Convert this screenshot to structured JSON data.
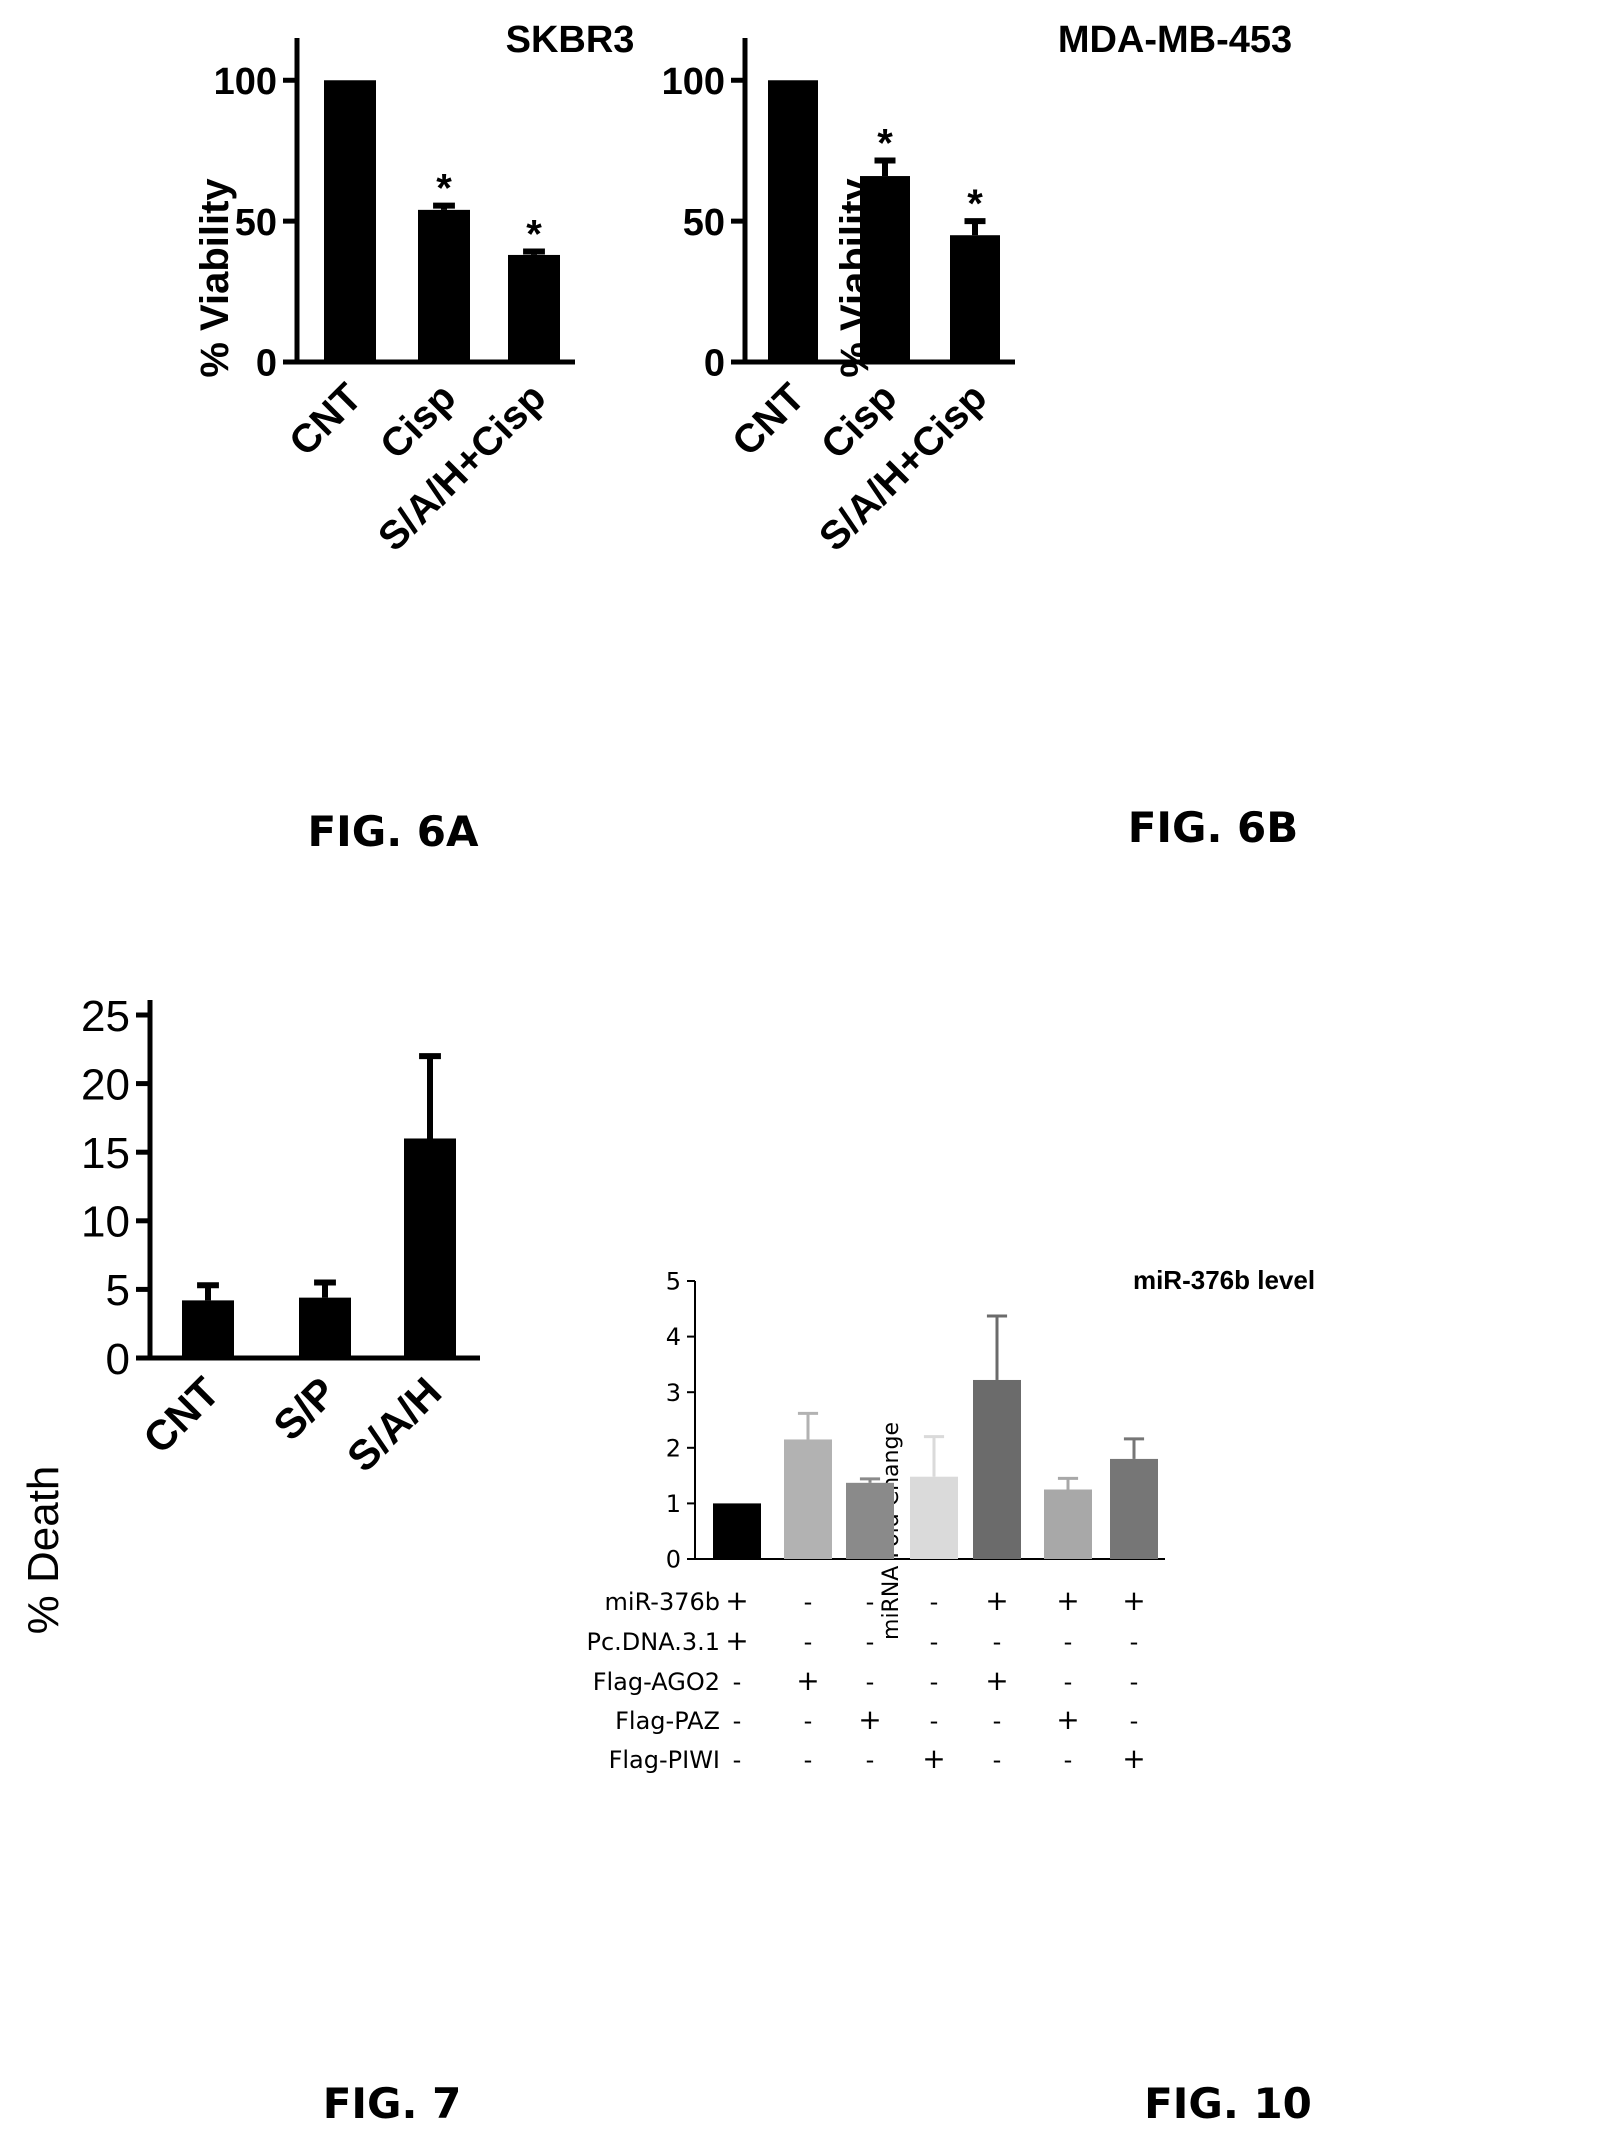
{
  "figures": {
    "fig6a": {
      "caption": "FIG. 6A"
    },
    "fig6b": {
      "caption": "FIG. 6B"
    },
    "fig7": {
      "caption": "FIG. 7"
    },
    "fig10": {
      "caption": "FIG. 10"
    }
  },
  "chart_data": [
    {
      "id": "fig6a",
      "type": "bar",
      "title": "SKBR3",
      "ylabel": "% Viability",
      "xlabel": "",
      "categories": [
        "CNT",
        "Cisp",
        "S/A/H+Cisp"
      ],
      "values": [
        100,
        54,
        38
      ],
      "errors": [
        0,
        1.5,
        1.2
      ],
      "significance": [
        "",
        "*",
        "*"
      ],
      "yticks": [
        "0",
        "50",
        "100"
      ],
      "ylim": [
        0,
        115
      ],
      "bar_color": "#000000",
      "grid": false
    },
    {
      "id": "fig6b",
      "type": "bar",
      "title": "MDA-MB-453",
      "ylabel": "% Viability",
      "xlabel": "",
      "categories": [
        "CNT",
        "Cisp",
        "S/A/H+Cisp"
      ],
      "values": [
        100,
        66,
        45
      ],
      "errors": [
        0,
        5.5,
        5
      ],
      "significance": [
        "",
        "*",
        "*"
      ],
      "yticks": [
        "0",
        "50",
        "100"
      ],
      "ylim": [
        0,
        115
      ],
      "bar_color": "#000000",
      "grid": false
    },
    {
      "id": "fig7",
      "type": "bar",
      "title": "",
      "ylabel": "% Death",
      "xlabel": "",
      "categories": [
        "CNT",
        "S/P",
        "S/A/H"
      ],
      "values": [
        4.2,
        4.4,
        16
      ],
      "errors": [
        1.1,
        1.1,
        6
      ],
      "yticks": [
        "0",
        "5",
        "10",
        "15",
        "20",
        "25"
      ],
      "ylim": [
        0,
        25
      ],
      "bar_color": "#000000",
      "grid": false
    },
    {
      "id": "fig10",
      "type": "bar",
      "title": "miR-376b level",
      "ylabel": "miRNA Fold Change",
      "xlabel": "",
      "values": [
        1.0,
        2.15,
        1.37,
        1.48,
        3.22,
        1.25,
        1.8
      ],
      "errors": [
        0,
        0.47,
        0.07,
        0.72,
        1.15,
        0.2,
        0.36
      ],
      "bar_colors": [
        "#000000",
        "#b2b2b2",
        "#8a8a8a",
        "#dadada",
        "#6b6b6b",
        "#a8a8a8",
        "#767676"
      ],
      "yticks": [
        "0",
        "1",
        "2",
        "3",
        "4",
        "5"
      ],
      "ylim": [
        0,
        5
      ],
      "grid": false,
      "condition_rows": [
        {
          "label": "miR-376b",
          "marks": [
            "+",
            "-",
            "-",
            "-",
            "+",
            "+",
            "+"
          ]
        },
        {
          "label": "Pc.DNA.3.1",
          "marks": [
            "+",
            "-",
            "-",
            "-",
            "-",
            "-",
            "-"
          ]
        },
        {
          "label": "Flag-AGO2",
          "marks": [
            "-",
            "+",
            "-",
            "-",
            "+",
            "-",
            "-"
          ]
        },
        {
          "label": "Flag-PAZ",
          "marks": [
            "-",
            "-",
            "+",
            "-",
            "-",
            "+",
            "-"
          ]
        },
        {
          "label": "Flag-PIWI",
          "marks": [
            "-",
            "-",
            "-",
            "+",
            "-",
            "-",
            "+"
          ]
        }
      ]
    }
  ]
}
